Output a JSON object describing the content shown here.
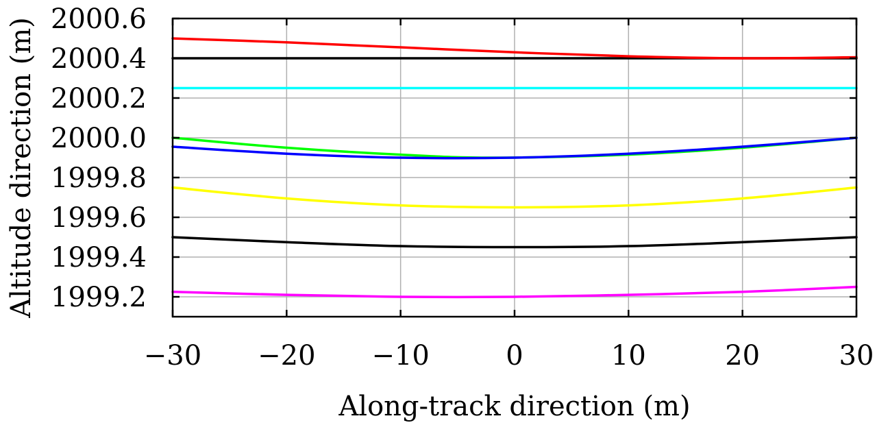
{
  "chart_data": {
    "type": "line",
    "title": "",
    "xlabel": "Along-track direction (m)",
    "ylabel": "Altitude direction (m)",
    "xlim": [
      -30,
      30
    ],
    "ylim": [
      1999.1,
      2000.6
    ],
    "xticks": [
      -30,
      -20,
      -10,
      0,
      10,
      20,
      30
    ],
    "xtick_labels": [
      "−30",
      "−20",
      "−10",
      "0",
      "10",
      "20",
      "30"
    ],
    "yticks": [
      1999.2,
      1999.4,
      1999.6,
      1999.8,
      2000.0,
      2000.2,
      2000.4,
      2000.6
    ],
    "ytick_labels": [
      "1999.2",
      "1999.4",
      "1999.6",
      "1999.8",
      "2000.0",
      "2000.2",
      "2000.4",
      "2000.6"
    ],
    "grid": true,
    "legend": "none",
    "series": [
      {
        "color": "#000000",
        "x": [
          -30,
          -20,
          -10,
          0,
          10,
          20,
          30
        ],
        "y": [
          2000.4,
          2000.4,
          2000.4,
          2000.4,
          2000.4,
          2000.4,
          2000.4
        ]
      },
      {
        "color": "#ff0000",
        "x": [
          -30,
          -20,
          -10,
          0,
          10,
          20,
          30
        ],
        "y": [
          2000.5,
          2000.48,
          2000.455,
          2000.43,
          2000.41,
          2000.4,
          2000.405
        ]
      },
      {
        "color": "#00ffff",
        "x": [
          -30,
          -20,
          -10,
          0,
          10,
          20,
          30
        ],
        "y": [
          2000.25,
          2000.25,
          2000.25,
          2000.25,
          2000.25,
          2000.25,
          2000.25
        ]
      },
      {
        "color": "#00ff00",
        "x": [
          -30,
          -20,
          -10,
          -2,
          10,
          20,
          30
        ],
        "y": [
          2000.0,
          1999.95,
          1999.915,
          1999.9,
          1999.915,
          1999.95,
          2000.0
        ]
      },
      {
        "color": "#0000ff",
        "x": [
          -30,
          -20,
          -10,
          0,
          10,
          20,
          30
        ],
        "y": [
          1999.955,
          1999.92,
          1999.9,
          1999.9,
          1999.92,
          1999.955,
          2000.0
        ]
      },
      {
        "color": "#ffff00",
        "x": [
          -30,
          -20,
          -10,
          0,
          10,
          20,
          30
        ],
        "y": [
          1999.75,
          1999.695,
          1999.66,
          1999.65,
          1999.66,
          1999.695,
          1999.75
        ]
      },
      {
        "color": "#000000",
        "x": [
          -30,
          -20,
          -10,
          0,
          10,
          20,
          30
        ],
        "y": [
          1999.5,
          1999.475,
          1999.455,
          1999.45,
          1999.455,
          1999.475,
          1999.5
        ]
      },
      {
        "color": "#ff00ff",
        "x": [
          -30,
          -20,
          -10,
          0,
          10,
          20,
          30
        ],
        "y": [
          1999.225,
          1999.21,
          1999.2,
          1999.2,
          1999.21,
          1999.225,
          1999.25
        ]
      }
    ]
  }
}
